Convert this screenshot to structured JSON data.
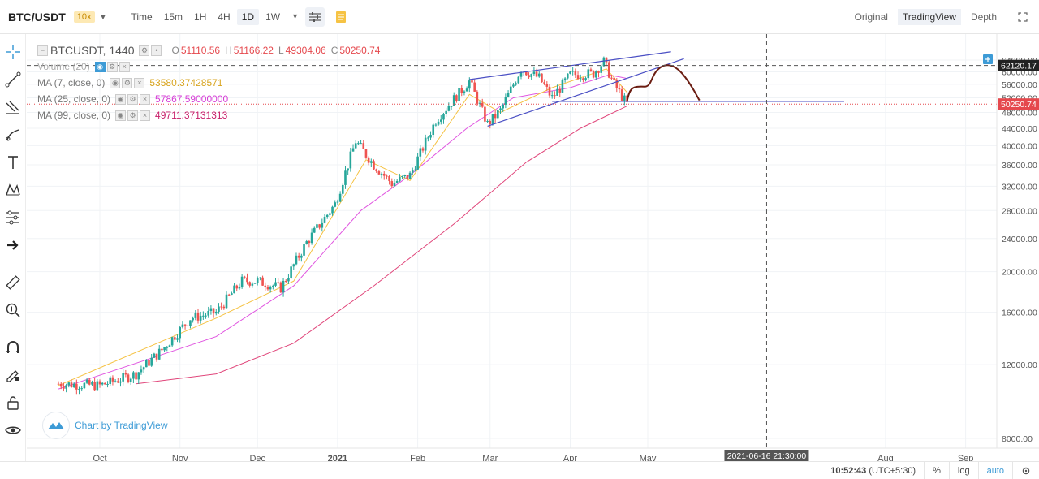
{
  "toolbar": {
    "symbol": "BTC/USDT",
    "leverage": "10x",
    "intervals": [
      "Time",
      "15m",
      "1H",
      "4H",
      "1D",
      "1W"
    ],
    "active_interval": "1D",
    "views": [
      "Original",
      "TradingView",
      "Depth"
    ],
    "active_view": "TradingView"
  },
  "legend": {
    "title": "BTCUSDT, 1440",
    "open_key": "O",
    "open": "51110.56",
    "high_key": "H",
    "high": "51166.22",
    "low_key": "L",
    "low": "49304.06",
    "close_key": "C",
    "close": "50250.74",
    "volume": "Volume (20)",
    "ma7_label": "MA (7, close, 0)",
    "ma7_value": "53580.37428571",
    "ma25_label": "MA (25, close, 0)",
    "ma25_value": "57867.59000000",
    "ma99_label": "MA (99, close, 0)",
    "ma99_value": "49711.37131313"
  },
  "colors": {
    "up": "#26a69a",
    "down": "#ef5350",
    "ma7": "#f5c242",
    "ma25": "#e055e0",
    "ma99": "#e0457a",
    "trendline": "#4a4fc4",
    "drawing": "#6b1d12",
    "price_tag": "#e5484d",
    "accent": "#3d9bd6"
  },
  "watermark": "Chart by TradingView",
  "crosshair_time_label": "2021-06-16 21:30:00",
  "price_tags": {
    "crosshair": "62120.17",
    "last": "50250.74"
  },
  "chart_data": {
    "type": "candlestick",
    "title": "BTCUSDT, 1440",
    "y_scale": "log",
    "ylim": [
      7000,
      70000
    ],
    "y_ticks": [
      8000,
      12000,
      16000,
      20000,
      24000,
      28000,
      32000,
      36000,
      40000,
      44000,
      48000,
      52000,
      56000,
      60000,
      64000
    ],
    "y_tick_labels": [
      "8000.00",
      "12000.00",
      "16000.00",
      "20000.00",
      "24000.00",
      "28000.00",
      "32000.00",
      "36000.00",
      "40000.00",
      "44000.00",
      "48000.00",
      "52000.00",
      "56000.00",
      "60000.00",
      "64000.00"
    ],
    "x_labels": [
      "Oct",
      "Nov",
      "Dec",
      "2021",
      "Feb",
      "Mar",
      "Apr",
      "May",
      "Aug",
      "Sep"
    ],
    "x_label_dates": [
      "2020-10-01",
      "2020-11-01",
      "2020-12-01",
      "2021-01-01",
      "2021-02-01",
      "2021-03-01",
      "2021-04-01",
      "2021-05-01",
      "2021-08-01",
      "2021-09-01"
    ],
    "price_path": [
      {
        "date": "2020-09-15",
        "close": 10800
      },
      {
        "date": "2020-10-01",
        "close": 10700
      },
      {
        "date": "2020-10-15",
        "close": 11400
      },
      {
        "date": "2020-10-25",
        "close": 13000
      },
      {
        "date": "2020-11-05",
        "close": 15500
      },
      {
        "date": "2020-11-15",
        "close": 16000
      },
      {
        "date": "2020-11-25",
        "close": 19000
      },
      {
        "date": "2020-12-01",
        "close": 19000
      },
      {
        "date": "2020-12-10",
        "close": 18300
      },
      {
        "date": "2020-12-20",
        "close": 23500
      },
      {
        "date": "2020-12-31",
        "close": 29000
      },
      {
        "date": "2021-01-08",
        "close": 41000
      },
      {
        "date": "2021-01-15",
        "close": 36000
      },
      {
        "date": "2021-01-22",
        "close": 32500
      },
      {
        "date": "2021-01-29",
        "close": 34000
      },
      {
        "date": "2021-02-08",
        "close": 46000
      },
      {
        "date": "2021-02-21",
        "close": 57000
      },
      {
        "date": "2021-02-28",
        "close": 45000
      },
      {
        "date": "2021-03-05",
        "close": 48500
      },
      {
        "date": "2021-03-13",
        "close": 61000
      },
      {
        "date": "2021-03-20",
        "close": 58000
      },
      {
        "date": "2021-03-25",
        "close": 52000
      },
      {
        "date": "2021-04-01",
        "close": 59000
      },
      {
        "date": "2021-04-10",
        "close": 59500
      },
      {
        "date": "2021-04-14",
        "close": 63500
      },
      {
        "date": "2021-04-18",
        "close": 56000
      },
      {
        "date": "2021-04-23",
        "close": 50250
      }
    ],
    "ma7_path": [
      {
        "date": "2020-09-15",
        "value": 10700
      },
      {
        "date": "2020-11-15",
        "value": 15500
      },
      {
        "date": "2020-12-15",
        "value": 19000
      },
      {
        "date": "2021-01-12",
        "value": 37000
      },
      {
        "date": "2021-01-29",
        "value": 33000
      },
      {
        "date": "2021-02-21",
        "value": 53000
      },
      {
        "date": "2021-03-05",
        "value": 48000
      },
      {
        "date": "2021-03-25",
        "value": 55000
      },
      {
        "date": "2021-04-15",
        "value": 61000
      },
      {
        "date": "2021-04-23",
        "value": 53580
      }
    ],
    "ma25_path": [
      {
        "date": "2020-09-15",
        "value": 10500
      },
      {
        "date": "2020-11-15",
        "value": 14000
      },
      {
        "date": "2020-12-15",
        "value": 18500
      },
      {
        "date": "2021-01-10",
        "value": 28000
      },
      {
        "date": "2021-01-29",
        "value": 34000
      },
      {
        "date": "2021-02-20",
        "value": 44000
      },
      {
        "date": "2021-03-10",
        "value": 52000
      },
      {
        "date": "2021-04-01",
        "value": 55000
      },
      {
        "date": "2021-04-16",
        "value": 59000
      },
      {
        "date": "2021-04-23",
        "value": 57868
      }
    ],
    "ma99_path": [
      {
        "date": "2020-10-15",
        "value": 10800
      },
      {
        "date": "2020-11-15",
        "value": 11400
      },
      {
        "date": "2020-12-15",
        "value": 13500
      },
      {
        "date": "2021-01-15",
        "value": 18500
      },
      {
        "date": "2021-02-15",
        "value": 26000
      },
      {
        "date": "2021-03-15",
        "value": 36500
      },
      {
        "date": "2021-04-05",
        "value": 44000
      },
      {
        "date": "2021-04-23",
        "value": 49711
      }
    ],
    "horizontal_level": 51000,
    "crosshair_price": 62120.17,
    "crosshair_date": "2021-06-16"
  },
  "status": {
    "clock": "10:52:43",
    "tz": "(UTC+5:30)",
    "percent": "%",
    "log": "log",
    "auto": "auto"
  }
}
